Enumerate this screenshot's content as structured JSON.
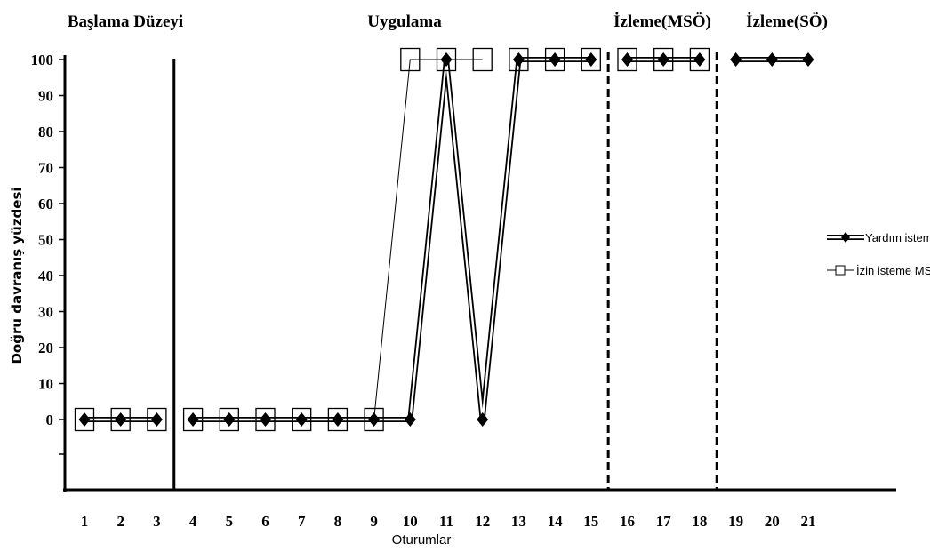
{
  "chart_data": {
    "type": "line",
    "xlabel": "Oturumlar",
    "ylabel": "Doğru davranış yüzdesi",
    "ylim": [
      0,
      100
    ],
    "yticks": [
      "0",
      "10",
      "20",
      "30",
      "40",
      "50",
      "60",
      "70",
      "80",
      "90",
      "100"
    ],
    "categories": [
      "1",
      "2",
      "3",
      "4",
      "5",
      "6",
      "7",
      "8",
      "9",
      "10",
      "11",
      "12",
      "13",
      "14",
      "15",
      "16",
      "17",
      "18",
      "19",
      "20",
      "21"
    ],
    "phases": [
      {
        "label": "Başlama Düzeyi",
        "sessions": [
          1,
          3
        ]
      },
      {
        "label": "Uygulama",
        "sessions": [
          4,
          15
        ]
      },
      {
        "label": "İzleme(MSÖ)",
        "sessions": [
          16,
          18
        ]
      },
      {
        "label": "İzleme(SÖ)",
        "sessions": [
          19,
          21
        ]
      }
    ],
    "phase_dividers": [
      {
        "after_session": 3,
        "style": "solid"
      },
      {
        "after_session": 15,
        "style": "dashed"
      },
      {
        "after_session": 18,
        "style": "dashed"
      }
    ],
    "series": [
      {
        "name": "Yardım isteme SÖ",
        "marker": "diamond",
        "line": "double",
        "segments": [
          [
            [
              1,
              0
            ],
            [
              2,
              0
            ],
            [
              3,
              0
            ]
          ],
          [
            [
              4,
              0
            ],
            [
              5,
              0
            ],
            [
              6,
              0
            ],
            [
              7,
              0
            ],
            [
              8,
              0
            ],
            [
              9,
              0
            ],
            [
              10,
              0
            ],
            [
              11,
              100
            ],
            [
              12,
              0
            ],
            [
              13,
              100
            ],
            [
              14,
              100
            ],
            [
              15,
              100
            ]
          ],
          [
            [
              16,
              100
            ],
            [
              17,
              100
            ],
            [
              18,
              100
            ]
          ],
          [
            [
              19,
              100
            ],
            [
              20,
              100
            ],
            [
              21,
              100
            ]
          ]
        ]
      },
      {
        "name": "İzin isteme MSÖ",
        "marker": "square",
        "line": "thin",
        "segments": [
          [
            [
              1,
              0
            ],
            [
              2,
              0
            ],
            [
              3,
              0
            ]
          ],
          [
            [
              4,
              0
            ],
            [
              5,
              0
            ],
            [
              6,
              0
            ],
            [
              7,
              0
            ],
            [
              8,
              0
            ],
            [
              9,
              0
            ],
            [
              10,
              100
            ],
            [
              11,
              100
            ],
            [
              12,
              100
            ]
          ],
          [
            [
              13,
              100
            ],
            [
              14,
              100
            ],
            [
              15,
              100
            ]
          ],
          [
            [
              16,
              100
            ],
            [
              17,
              100
            ],
            [
              18,
              100
            ]
          ]
        ]
      }
    ],
    "legend_position": "right",
    "grid": false
  }
}
